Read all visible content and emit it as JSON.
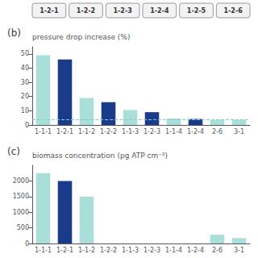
{
  "chart_data": [
    {
      "type": "bar",
      "title": "(b)",
      "ylabel": "pressure drop increase (%)",
      "annotations": [
        "1-2-1",
        "1-2-2",
        "1-2-3",
        "1-2-4",
        "1-2-5",
        "1-2-6"
      ],
      "categories": [
        "1-1-1",
        "1-2-1",
        "1-1-2",
        "1-2-2",
        "1-1-3",
        "1-2-3",
        "1-1-4",
        "1-2-4",
        "2-6",
        "3-1"
      ],
      "values": [
        49,
        46,
        19,
        16,
        10.5,
        9,
        4.5,
        4.2,
        3.5,
        3.5
      ],
      "colors": [
        "#aaded8",
        "#1a3a8a",
        "#aaded8",
        "#1a3a8a",
        "#aaded8",
        "#1a3a8a",
        "#aaded8",
        "#1a3a8a",
        "#aaded8",
        "#aaded8"
      ],
      "reference_line": {
        "value": 4,
        "color": "#7ecece",
        "line_style": "dashed"
      },
      "ylim": [
        0,
        55
      ],
      "yticks": [
        0,
        10,
        20,
        30,
        40,
        50
      ],
      "grid": false
    },
    {
      "type": "bar",
      "title": "(c)",
      "ylabel": "biomass concentration (pg ATP cm⁻²)",
      "categories": [
        "1-1-1",
        "1-2-1",
        "1-1-2",
        "1-2-2",
        "1-1-3",
        "1-2-3",
        "1-1-4",
        "1-2-4",
        "2-6",
        "3-1"
      ],
      "values": [
        2250,
        2000,
        1500,
        0,
        0,
        0,
        0,
        0,
        280,
        170
      ],
      "colors": [
        "#aaded8",
        "#1a3a8a",
        "#aaded8",
        "#1a3a8a",
        "#aaded8",
        "#1a3a8a",
        "#aaded8",
        "#1a3a8a",
        "#aaded8",
        "#aaded8"
      ],
      "ylim": [
        0,
        2500
      ],
      "yticks": [
        0,
        500,
        1000,
        1500,
        2000
      ],
      "grid": false
    }
  ]
}
